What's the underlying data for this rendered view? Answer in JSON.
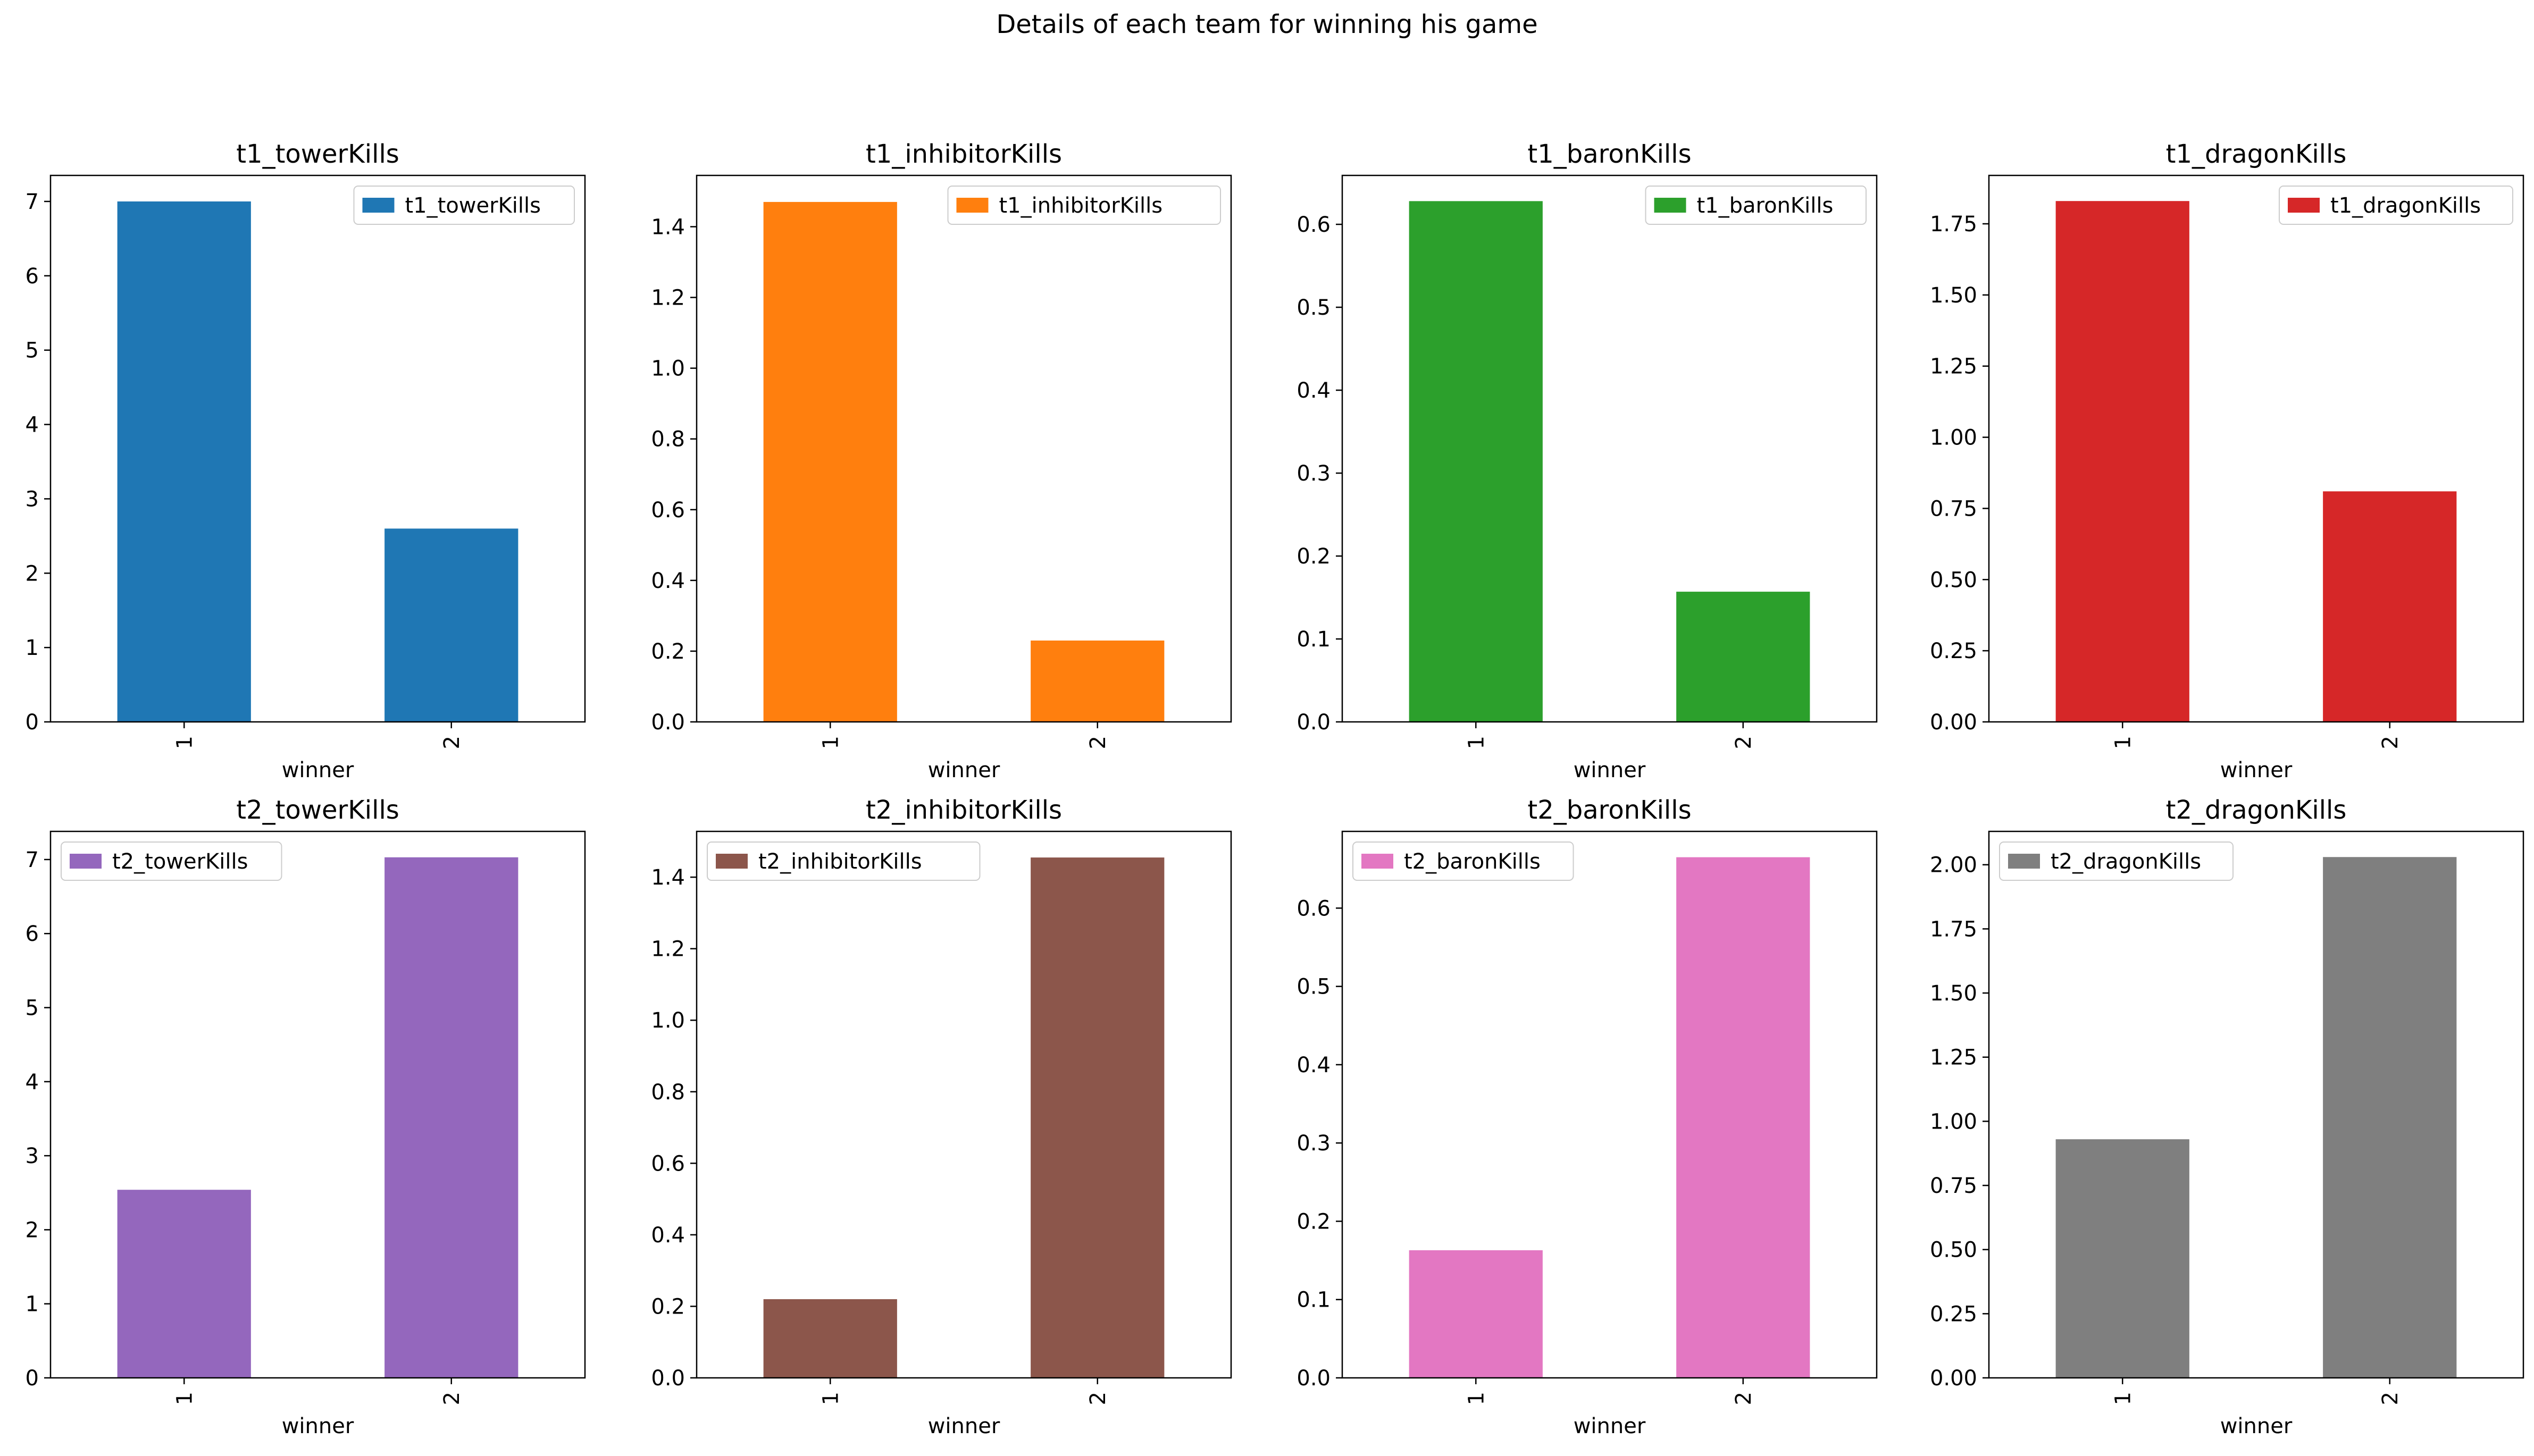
{
  "suptitle": "Details of each team for winning his game",
  "chart_data": [
    {
      "type": "bar",
      "title": "t1_towerKills",
      "xlabel": "winner",
      "ylabel": "",
      "categories": [
        "1",
        "2"
      ],
      "series": [
        {
          "name": "t1_towerKills",
          "values": [
            7.0,
            2.6
          ]
        }
      ],
      "color": "#1f77b4",
      "yticks": [
        "0",
        "1",
        "2",
        "3",
        "4",
        "5",
        "6",
        "7"
      ],
      "ylim": [
        0,
        7.35
      ],
      "legend": "top-right",
      "grid": false
    },
    {
      "type": "bar",
      "title": "t1_inhibitorKills",
      "xlabel": "winner",
      "ylabel": "",
      "categories": [
        "1",
        "2"
      ],
      "series": [
        {
          "name": "t1_inhibitorKills",
          "values": [
            1.47,
            0.23
          ]
        }
      ],
      "color": "#ff7f0e",
      "yticks": [
        "0.0",
        "0.2",
        "0.4",
        "0.6",
        "0.8",
        "1.0",
        "1.2",
        "1.4"
      ],
      "ylim": [
        0,
        1.545
      ],
      "legend": "top-right",
      "grid": false
    },
    {
      "type": "bar",
      "title": "t1_baronKills",
      "xlabel": "winner",
      "ylabel": "",
      "categories": [
        "1",
        "2"
      ],
      "series": [
        {
          "name": "t1_baronKills",
          "values": [
            0.628,
            0.157
          ]
        }
      ],
      "color": "#2ca02c",
      "yticks": [
        "0.0",
        "0.1",
        "0.2",
        "0.3",
        "0.4",
        "0.5",
        "0.6"
      ],
      "ylim": [
        0,
        0.659
      ],
      "legend": "top-right",
      "grid": false
    },
    {
      "type": "bar",
      "title": "t1_dragonKills",
      "xlabel": "winner",
      "ylabel": "",
      "categories": [
        "1",
        "2"
      ],
      "series": [
        {
          "name": "t1_dragonKills",
          "values": [
            1.83,
            0.81
          ]
        }
      ],
      "color": "#d62728",
      "yticks": [
        "0.00",
        "0.25",
        "0.50",
        "0.75",
        "1.00",
        "1.25",
        "1.50",
        "1.75"
      ],
      "ylim": [
        0,
        1.92
      ],
      "legend": "top-right",
      "grid": false
    },
    {
      "type": "bar",
      "title": "t2_towerKills",
      "xlabel": "winner",
      "ylabel": "",
      "categories": [
        "1",
        "2"
      ],
      "series": [
        {
          "name": "t2_towerKills",
          "values": [
            2.54,
            7.03
          ]
        }
      ],
      "color": "#9467bd",
      "yticks": [
        "0",
        "1",
        "2",
        "3",
        "4",
        "5",
        "6",
        "7"
      ],
      "ylim": [
        0,
        7.38
      ],
      "legend": "top-left",
      "grid": false
    },
    {
      "type": "bar",
      "title": "t2_inhibitorKills",
      "xlabel": "winner",
      "ylabel": "",
      "categories": [
        "1",
        "2"
      ],
      "series": [
        {
          "name": "t2_inhibitorKills",
          "values": [
            0.22,
            1.455
          ]
        }
      ],
      "color": "#8c564b",
      "yticks": [
        "0.0",
        "0.2",
        "0.4",
        "0.6",
        "0.8",
        "1.0",
        "1.2",
        "1.4"
      ],
      "ylim": [
        0,
        1.528
      ],
      "legend": "top-left",
      "grid": false
    },
    {
      "type": "bar",
      "title": "t2_baronKills",
      "xlabel": "winner",
      "ylabel": "",
      "categories": [
        "1",
        "2"
      ],
      "series": [
        {
          "name": "t2_baronKills",
          "values": [
            0.163,
            0.665
          ]
        }
      ],
      "color": "#e377c2",
      "yticks": [
        "0.0",
        "0.1",
        "0.2",
        "0.3",
        "0.4",
        "0.5",
        "0.6"
      ],
      "ylim": [
        0,
        0.698
      ],
      "legend": "top-left",
      "grid": false
    },
    {
      "type": "bar",
      "title": "t2_dragonKills",
      "xlabel": "winner",
      "ylabel": "",
      "categories": [
        "1",
        "2"
      ],
      "series": [
        {
          "name": "t2_dragonKills",
          "values": [
            0.93,
            2.03
          ]
        }
      ],
      "color": "#7f7f7f",
      "yticks": [
        "0.00",
        "0.25",
        "0.50",
        "0.75",
        "1.00",
        "1.25",
        "1.50",
        "1.75",
        "2.00"
      ],
      "ylim": [
        0,
        2.13
      ],
      "legend": "top-left",
      "grid": false
    }
  ]
}
